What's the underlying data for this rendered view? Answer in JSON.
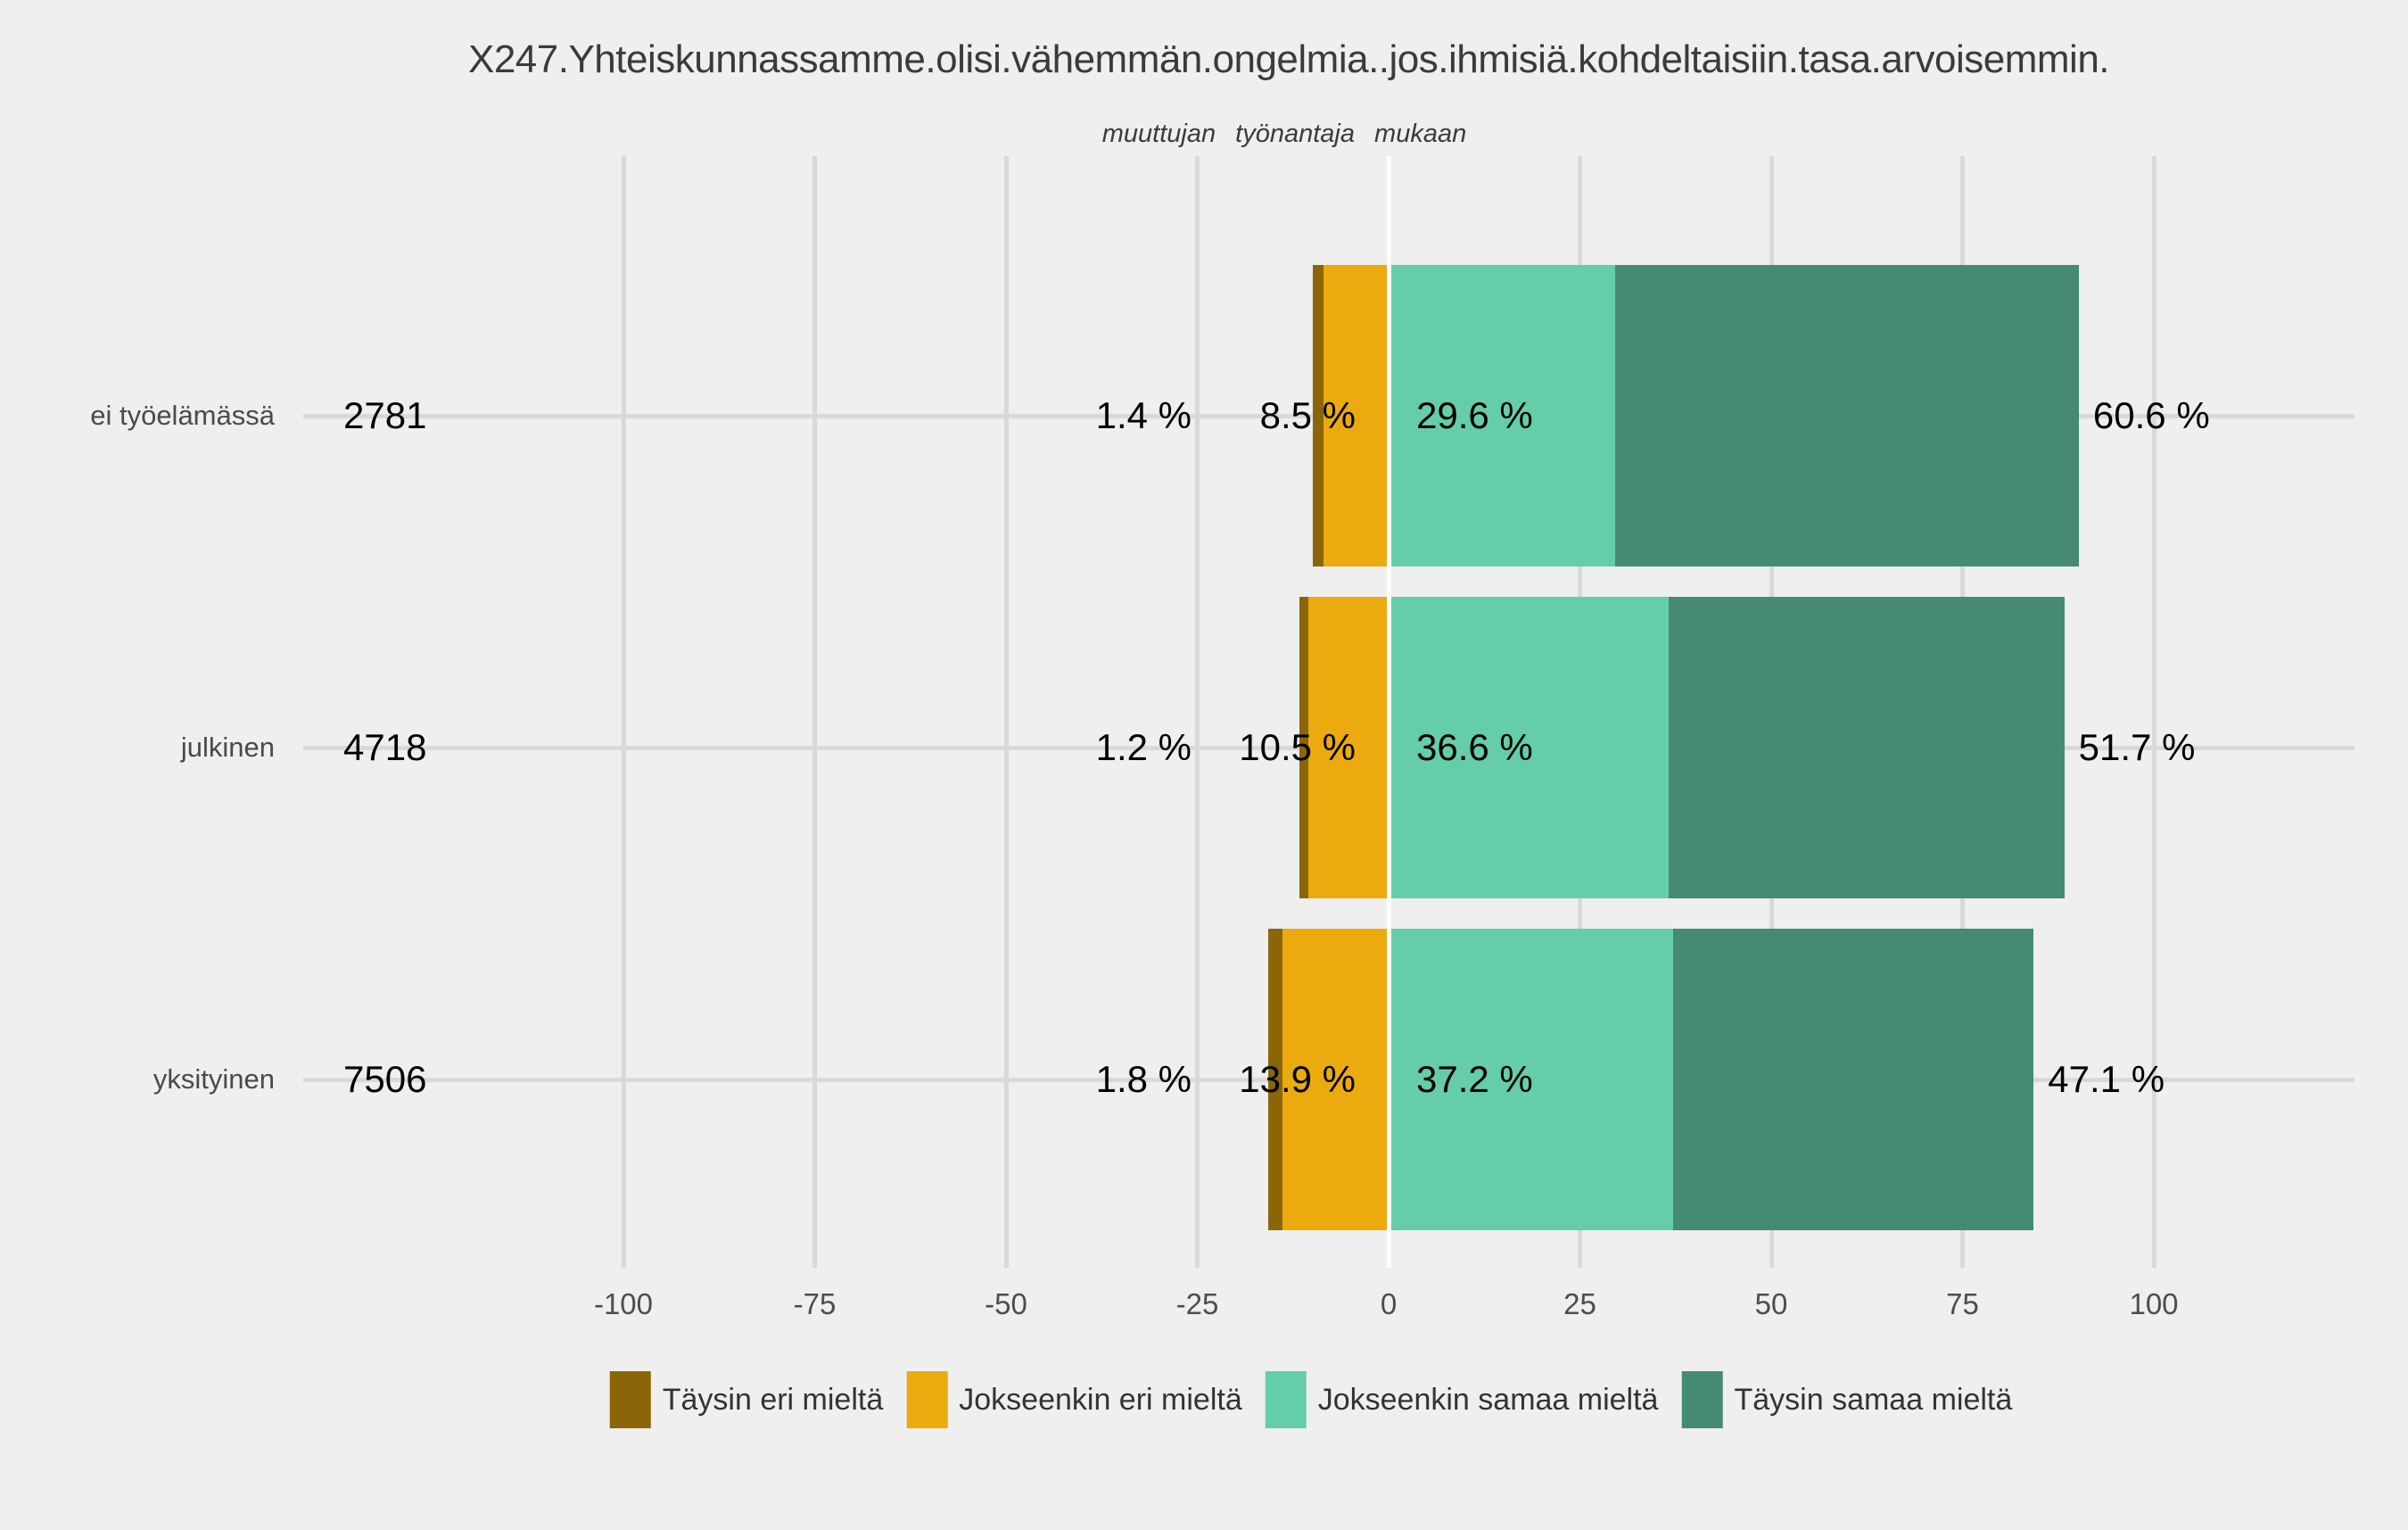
{
  "chart_data": {
    "type": "bar",
    "variant": "horizontal-diverging-stacked-likert",
    "title": "X247.Yhteiskunnassamme.olisi.vähemmän.ongelmia..jos.ihmisiä.kohdeltaisiin.tasa.arvoisemmin.",
    "subtitle": "muuttujan työnantaja mukaan",
    "xlabel": "",
    "ylabel": "",
    "axis_range": [
      -100,
      100
    ],
    "grid": "major vertical gridlines every 25; one horizontal gridline per category; zero line white",
    "legend_position": "bottom",
    "x_ticks": [
      {
        "value": -100,
        "label": "-100"
      },
      {
        "value": -75,
        "label": "-75"
      },
      {
        "value": -50,
        "label": "-50"
      },
      {
        "value": -25,
        "label": "-25"
      },
      {
        "value": 0,
        "label": "0"
      },
      {
        "value": 25,
        "label": "25"
      },
      {
        "value": 50,
        "label": "50"
      },
      {
        "value": 75,
        "label": "75"
      },
      {
        "value": 100,
        "label": "100"
      }
    ],
    "series": [
      {
        "name": "Täysin eri mieltä",
        "color": "#8B6508",
        "side": "negative",
        "values": [
          1.4,
          1.2,
          1.8
        ]
      },
      {
        "name": "Jokseenkin eri mieltä",
        "color": "#EBAB0F",
        "side": "negative",
        "values": [
          8.5,
          10.5,
          13.9
        ]
      },
      {
        "name": "Jokseenkin samaa mieltä",
        "color": "#66CDAA",
        "side": "positive",
        "values": [
          29.6,
          36.6,
          37.2
        ]
      },
      {
        "name": "Täysin samaa mieltä",
        "color": "#458B74",
        "side": "positive",
        "values": [
          60.6,
          51.7,
          47.1
        ]
      }
    ],
    "categories": [
      "ei työelämässä",
      "julkinen",
      "yksityinen"
    ],
    "counts": [
      2781,
      4718,
      7506
    ],
    "rows": [
      {
        "category": "ei työelämässä",
        "count": "2781",
        "values": [
          1.4,
          8.5,
          29.6,
          60.6
        ],
        "pct_labels": [
          "1.4 %",
          "8.5 %",
          "29.6 %",
          "60.6 %"
        ]
      },
      {
        "category": "julkinen",
        "count": "4718",
        "values": [
          1.2,
          10.5,
          36.6,
          51.7
        ],
        "pct_labels": [
          "1.2 %",
          "10.5 %",
          "36.6 %",
          "51.7 %"
        ]
      },
      {
        "category": "yksityinen",
        "count": "7506",
        "values": [
          1.8,
          13.9,
          37.2,
          47.1
        ],
        "pct_labels": [
          "1.8 %",
          "13.9 %",
          "37.2 %",
          "47.1 %"
        ]
      }
    ],
    "colors": {
      "background": "#EFEFEF",
      "gridline": "#D9D9D9",
      "zero_line": "#FFFFFF",
      "title_text": "#3B3B3B",
      "axis_text": "#4D4D4D",
      "value_text": "#000000"
    }
  }
}
